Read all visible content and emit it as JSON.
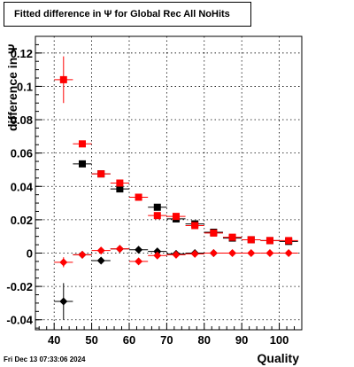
{
  "header": {
    "title": "Fitted difference in   Ψ   for Global Rec All NoHits"
  },
  "footer": {
    "timestamp": "Fri Dec 13 07:33:06 2024"
  },
  "chart_data": {
    "type": "scatter",
    "title": "Fitted difference in Ψ for Global Rec All NoHits",
    "xlabel": "Quality",
    "ylabel": "difference in Ψ",
    "xlim": [
      35,
      106
    ],
    "ylim": [
      -0.046,
      0.13
    ],
    "xticks": [
      40,
      50,
      60,
      70,
      80,
      90,
      100
    ],
    "yticks": [
      -0.04,
      -0.02,
      0,
      0.02,
      0.04,
      0.06,
      0.08,
      0.1,
      0.12
    ],
    "ytick_labels": [
      "-0.04",
      "-0.02",
      "0",
      "0.02",
      "0.04",
      "0.06",
      "0.08",
      "0.1",
      "0.12"
    ],
    "grid": true,
    "series": [
      {
        "color": "#000000",
        "marker": "square",
        "points": [
          {
            "x": 47.5,
            "y": 0.0535,
            "yerr": 0.0005
          },
          {
            "x": 52.5,
            "y": 0.0475,
            "yerr": 0.0005
          },
          {
            "x": 57.5,
            "y": 0.0385,
            "yerr": 0.0005
          },
          {
            "x": 67.5,
            "y": 0.0275,
            "yerr": 0.0005
          },
          {
            "x": 72.5,
            "y": 0.0205,
            "yerr": 0.0005
          },
          {
            "x": 77.5,
            "y": 0.0175,
            "yerr": 0.0005
          },
          {
            "x": 82.5,
            "y": 0.0125,
            "yerr": 0.0005
          },
          {
            "x": 87.5,
            "y": 0.009,
            "yerr": 0.0005
          },
          {
            "x": 92.5,
            "y": 0.008,
            "yerr": 0.0005
          },
          {
            "x": 97.5,
            "y": 0.0075,
            "yerr": 0.0005
          },
          {
            "x": 102.5,
            "y": 0.007,
            "yerr": 0.0005
          }
        ]
      },
      {
        "color": "#ff0000",
        "marker": "square",
        "points": [
          {
            "x": 42.5,
            "y": 0.104,
            "yerr": 0.014
          },
          {
            "x": 47.5,
            "y": 0.0655,
            "yerr": 0.001
          },
          {
            "x": 52.5,
            "y": 0.0475,
            "yerr": 0.0005
          },
          {
            "x": 57.5,
            "y": 0.042,
            "yerr": 0.0005
          },
          {
            "x": 62.5,
            "y": 0.0335,
            "yerr": 0.0005
          },
          {
            "x": 67.5,
            "y": 0.0225,
            "yerr": 0.0005
          },
          {
            "x": 72.5,
            "y": 0.022,
            "yerr": 0.0005
          },
          {
            "x": 77.5,
            "y": 0.0165,
            "yerr": 0.0005
          },
          {
            "x": 82.5,
            "y": 0.012,
            "yerr": 0.0005
          },
          {
            "x": 87.5,
            "y": 0.0095,
            "yerr": 0.0005
          },
          {
            "x": 92.5,
            "y": 0.008,
            "yerr": 0.0005
          },
          {
            "x": 97.5,
            "y": 0.0075,
            "yerr": 0.0005
          },
          {
            "x": 102.5,
            "y": 0.0075,
            "yerr": 0.0005
          }
        ]
      },
      {
        "color": "#000000",
        "marker": "diamond",
        "points": [
          {
            "x": 42.5,
            "y": -0.029,
            "yerr": 0.011
          },
          {
            "x": 47.5,
            "y": -0.001,
            "yerr": 0.0005
          },
          {
            "x": 52.5,
            "y": -0.0045,
            "yerr": 0.0005
          },
          {
            "x": 57.5,
            "y": 0.0025,
            "yerr": 0.0005
          },
          {
            "x": 62.5,
            "y": 0.002,
            "yerr": 0.0005
          },
          {
            "x": 67.5,
            "y": 0.001,
            "yerr": 0.0005
          },
          {
            "x": 72.5,
            "y": -0.0005,
            "yerr": 0.0005
          },
          {
            "x": 77.5,
            "y": 0.0,
            "yerr": 0.0005
          },
          {
            "x": 82.5,
            "y": 0.0,
            "yerr": 0.0005
          }
        ]
      },
      {
        "color": "#ff0000",
        "marker": "diamond",
        "points": [
          {
            "x": 42.5,
            "y": -0.0055,
            "yerr": 0.003
          },
          {
            "x": 47.5,
            "y": -0.001,
            "yerr": 0.0005
          },
          {
            "x": 52.5,
            "y": 0.0015,
            "yerr": 0.0005
          },
          {
            "x": 57.5,
            "y": 0.0025,
            "yerr": 0.0005
          },
          {
            "x": 62.5,
            "y": -0.005,
            "yerr": 0.0005
          },
          {
            "x": 67.5,
            "y": -0.0015,
            "yerr": 0.0005
          },
          {
            "x": 72.5,
            "y": -0.001,
            "yerr": 0.0005
          },
          {
            "x": 77.5,
            "y": -0.0005,
            "yerr": 0.0005
          },
          {
            "x": 82.5,
            "y": 0.0,
            "yerr": 0.0005
          },
          {
            "x": 87.5,
            "y": 0.0,
            "yerr": 0.0005
          },
          {
            "x": 92.5,
            "y": 0.0,
            "yerr": 0.0005
          },
          {
            "x": 97.5,
            "y": 0.0,
            "yerr": 0.0005
          },
          {
            "x": 102.5,
            "y": 0.0,
            "yerr": 0.0005
          }
        ]
      }
    ]
  }
}
